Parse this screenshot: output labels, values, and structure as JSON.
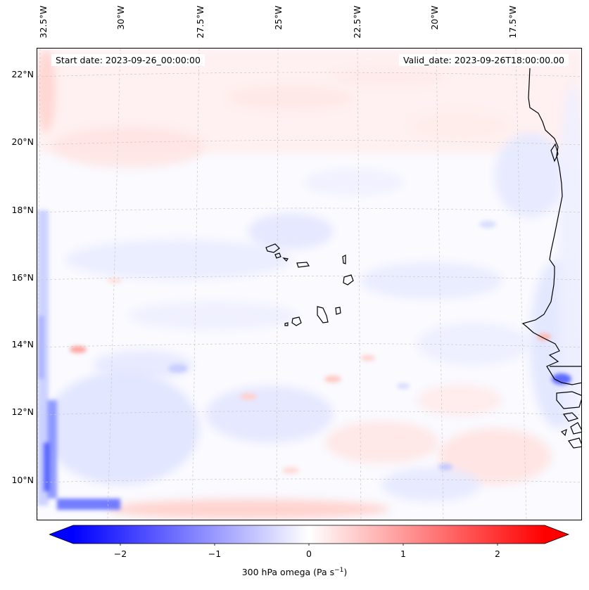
{
  "map": {
    "start_date": "Start date: 2023-09-26_00:00:00",
    "valid_date": "Valid_date: 2023-09-26T18:00:00.00",
    "lon_labels": [
      "32.5°W",
      "30°W",
      "27.5°W",
      "25°W",
      "22.5°W",
      "20°W",
      "17.5°W"
    ],
    "lat_labels": [
      "22°N",
      "20°N",
      "18°N",
      "16°N",
      "14°N",
      "12°N",
      "10°N"
    ],
    "gridlines": true,
    "coastline_color": "#000000"
  },
  "colorbar": {
    "cmap": "bwr",
    "vmin": -2.5,
    "vmax": 2.5,
    "extend": "both",
    "ticks": [
      "−2",
      "−1",
      "0",
      "1",
      "2"
    ],
    "label_prefix": "300 hPa omega (Pa s",
    "label_exp": "−1",
    "label_suffix": ")",
    "color_low": "#0000ff",
    "color_mid": "#ffffff",
    "color_high": "#ff0000"
  }
}
